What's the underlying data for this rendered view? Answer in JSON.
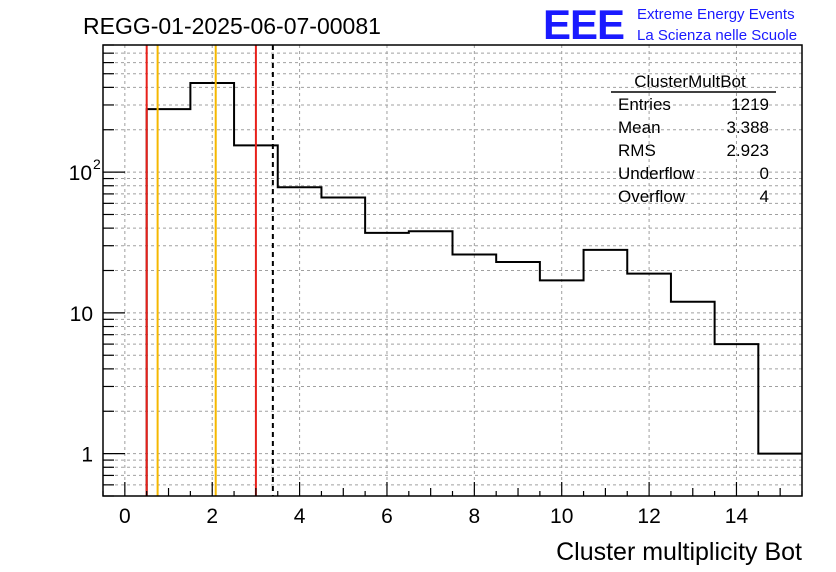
{
  "title": "REGG-01-2025-06-07-00081",
  "logo": {
    "mark": "EEE",
    "line1": "Extreme Energy Events",
    "line2": "La Scienza nelle Scuole",
    "color": "#1a1aff"
  },
  "stats": {
    "name": "ClusterMultBot",
    "rows": [
      {
        "label": "Entries",
        "value": "1219"
      },
      {
        "label": "Mean",
        "value": "3.388"
      },
      {
        "label": "RMS",
        "value": "2.923"
      },
      {
        "label": "Underflow",
        "value": "0"
      },
      {
        "label": "Overflow",
        "value": "4"
      }
    ]
  },
  "chart_data": {
    "type": "histogram",
    "xlabel": "Cluster multiplicity Bot",
    "ylabel": "",
    "xlim": [
      -0.5,
      15.5
    ],
    "ylim": [
      0.5,
      800
    ],
    "yscale": "log",
    "grid": true,
    "x_ticks": [
      0,
      2,
      4,
      6,
      8,
      10,
      12,
      14
    ],
    "y_ticks": [
      {
        "value": 1,
        "label": "1"
      },
      {
        "value": 10,
        "label": "10"
      },
      {
        "value": 100,
        "label": "10",
        "exp": "2"
      }
    ],
    "bins": {
      "edges": [
        0.5,
        1.5,
        2.5,
        3.5,
        4.5,
        5.5,
        6.5,
        7.5,
        8.5,
        9.5,
        10.5,
        11.5,
        12.5,
        13.5,
        14.5,
        15.5
      ],
      "counts": [
        280,
        430,
        155,
        78,
        66,
        37,
        38,
        26,
        23,
        17,
        28,
        19,
        12,
        6,
        1
      ]
    },
    "vlines": [
      {
        "x": 0.5,
        "color": "#e8201a",
        "style": "solid"
      },
      {
        "x": 0.75,
        "color": "#f5b800",
        "style": "solid"
      },
      {
        "x": 2.08,
        "color": "#f5b800",
        "style": "solid"
      },
      {
        "x": 3.0,
        "color": "#e8201a",
        "style": "solid"
      },
      {
        "x": 3.388,
        "color": "#000000",
        "style": "dashed"
      }
    ]
  }
}
